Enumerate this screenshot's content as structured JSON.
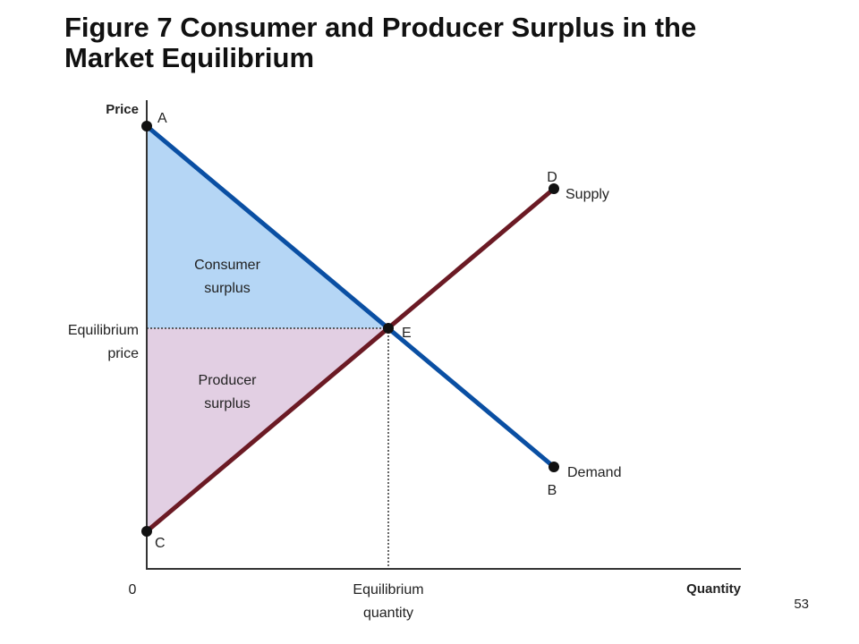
{
  "title": {
    "line1": "Figure 7 Consumer and Producer Surplus in the",
    "line2": "Market Equilibrium"
  },
  "axes": {
    "y_label": "Price",
    "x_label": "Quantity",
    "origin": "0"
  },
  "equilibrium": {
    "price_line1": "Equilibrium",
    "price_line2": "price",
    "quantity_line1": "Equilibrium",
    "quantity_line2": "quantity"
  },
  "regions": {
    "consumer_line1": "Consumer",
    "consumer_line2": "surplus",
    "producer_line1": "Producer",
    "producer_line2": "surplus"
  },
  "curves": {
    "supply": "Supply",
    "demand": "Demand"
  },
  "points": {
    "A": "A",
    "B": "B",
    "C": "C",
    "D": "D",
    "E": "E"
  },
  "colors": {
    "demand": "#0a4fa3",
    "supply": "#6b1a24",
    "consumer_fill": "#b5d6f5",
    "producer_fill": "#e2cfe3"
  },
  "page_number": "53"
}
